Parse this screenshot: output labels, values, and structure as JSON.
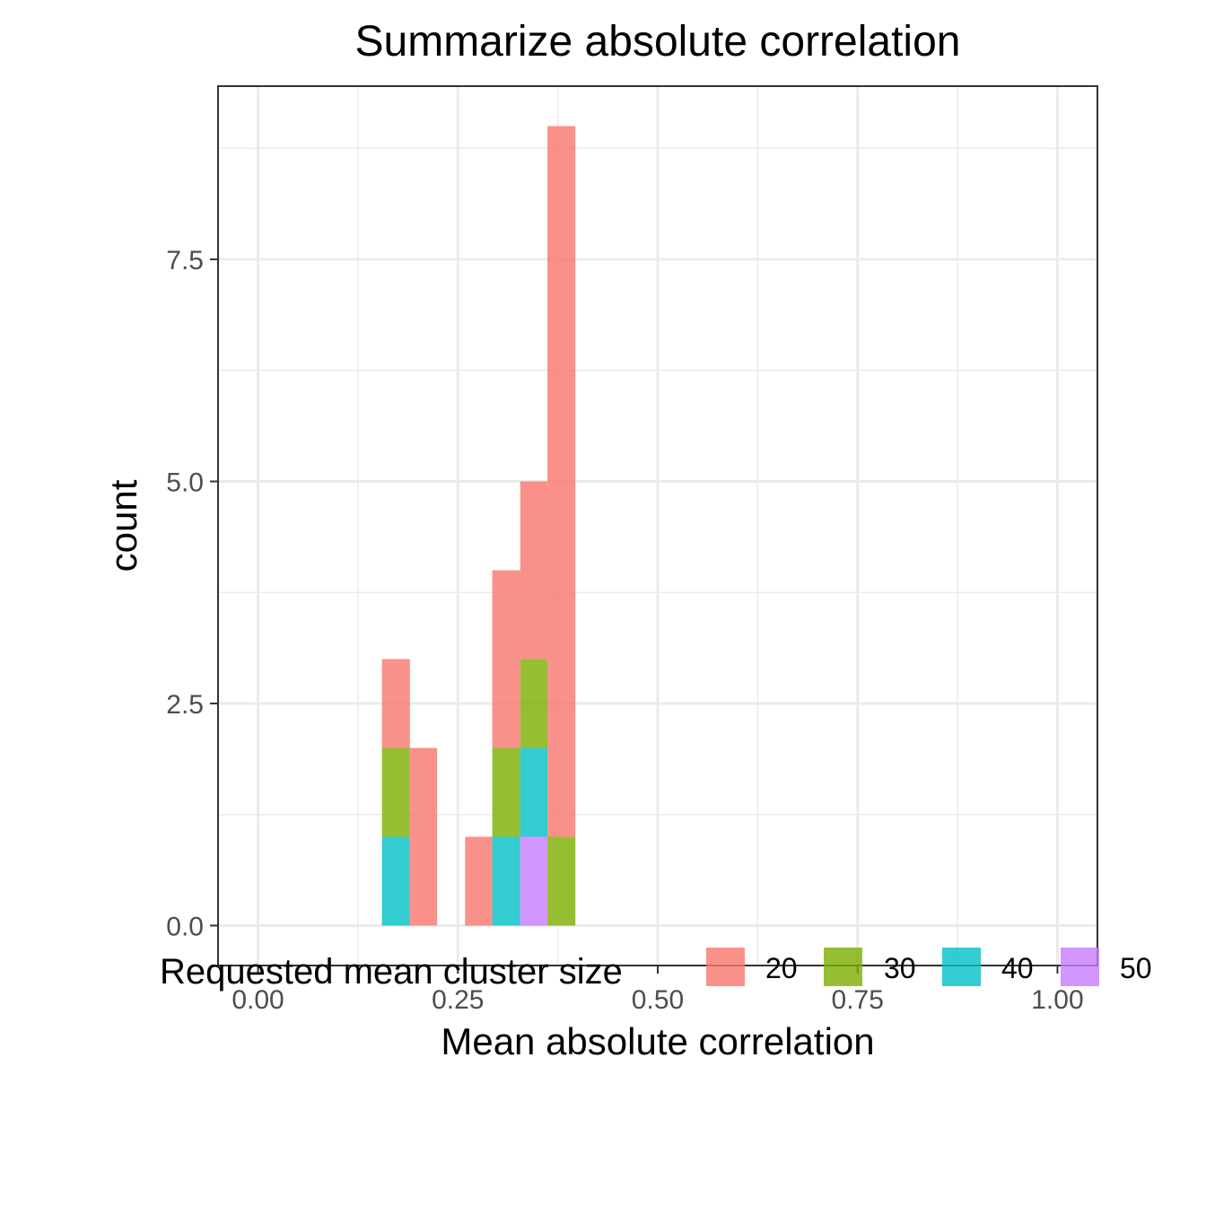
{
  "chart_data": {
    "type": "bar",
    "subtype": "stacked-histogram",
    "title": "Summarize absolute correlation",
    "xlabel": "Mean absolute correlation",
    "ylabel": "count",
    "xlim": [
      -0.05,
      1.05
    ],
    "ylim": [
      -0.45,
      9.45
    ],
    "x_ticks": [
      0,
      0.25,
      0.5,
      0.75,
      1
    ],
    "x_tick_labels": [
      "0.00",
      "0.25",
      "0.50",
      "0.75",
      "1.00"
    ],
    "y_ticks": [
      0,
      2.5,
      5,
      7.5
    ],
    "y_tick_labels": [
      "0.0",
      "2.5",
      "5.0",
      "7.5"
    ],
    "grid": true,
    "legend": {
      "title": "Requested mean cluster size",
      "position": "bottom"
    },
    "bins": [
      {
        "x0": 0.155,
        "x1": 0.19
      },
      {
        "x0": 0.19,
        "x1": 0.224
      },
      {
        "x0": 0.259,
        "x1": 0.293
      },
      {
        "x0": 0.293,
        "x1": 0.328
      },
      {
        "x0": 0.328,
        "x1": 0.362
      },
      {
        "x0": 0.362,
        "x1": 0.397
      }
    ],
    "stack_order": [
      "50",
      "40",
      "30",
      "20"
    ],
    "series": [
      {
        "name": "20",
        "color": "#F8766D",
        "values": [
          1,
          2,
          1,
          2,
          2,
          8
        ]
      },
      {
        "name": "30",
        "color": "#7CAE00",
        "values": [
          1,
          0,
          0,
          1,
          1,
          1
        ]
      },
      {
        "name": "40",
        "color": "#00BFC4",
        "values": [
          1,
          0,
          0,
          1,
          1,
          0
        ]
      },
      {
        "name": "50",
        "color": "#C77CFF",
        "values": [
          0,
          0,
          0,
          0,
          1,
          0
        ]
      }
    ]
  }
}
